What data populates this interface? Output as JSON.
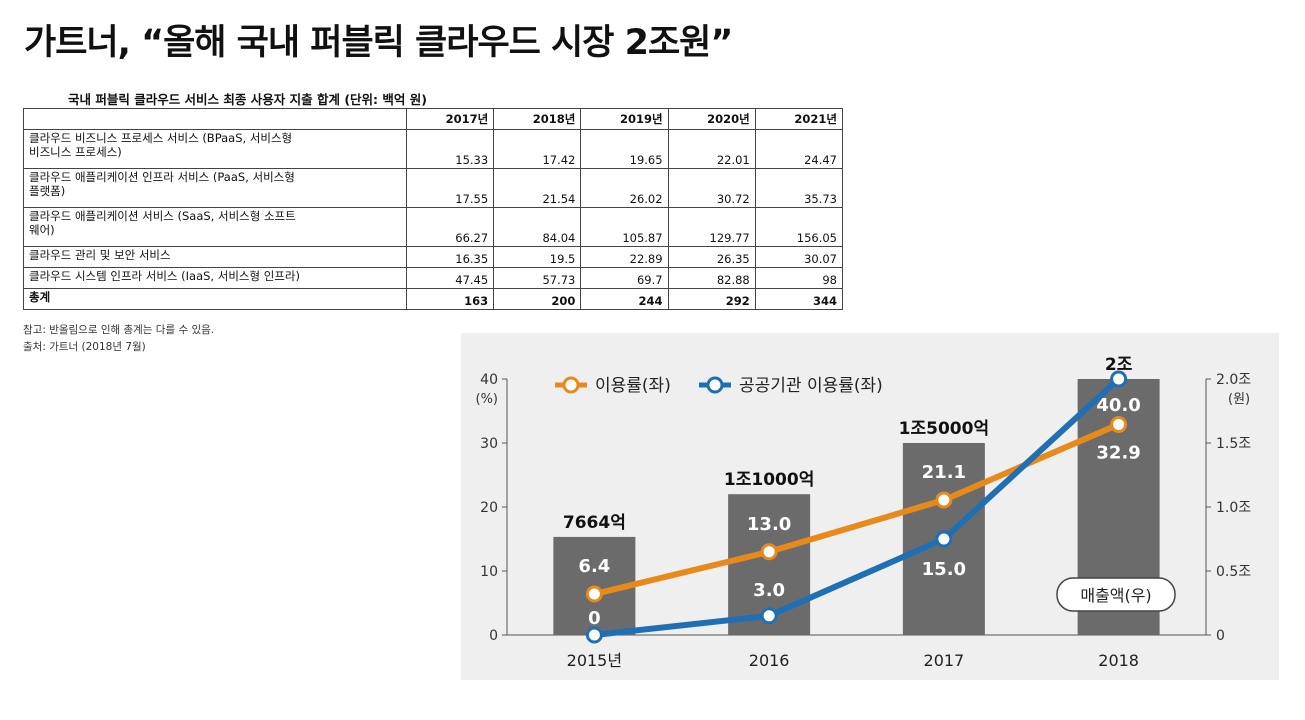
{
  "title": "가트너, “올해 국내 퍼블릭 클라우드 시장 2조원”",
  "table": {
    "caption": "국내 퍼블릭 클라우드 서비스 최종 사용자 지출 합계 (단위: 백억 원)",
    "columns": [
      "2017년",
      "2018년",
      "2019년",
      "2020년",
      "2021년"
    ],
    "rows": [
      {
        "label_lines": [
          "클라우드 비즈니스 프로세스 서비스 (BPaaS, 서비스형",
          "비즈니스 프로세스)"
        ],
        "values": [
          "15.33",
          "17.42",
          "19.65",
          "22.01",
          "24.47"
        ]
      },
      {
        "label_lines": [
          "클라우드 애플리케이션 인프라 서비스 (PaaS, 서비스형",
          "플랫폼)"
        ],
        "values": [
          "17.55",
          "21.54",
          "26.02",
          "30.72",
          "35.73"
        ]
      },
      {
        "label_lines": [
          "클라우드 애플리케이션 서비스 (SaaS, 서비스형 소프트",
          "웨어)"
        ],
        "values": [
          "66.27",
          "84.04",
          "105.87",
          "129.77",
          "156.05"
        ]
      },
      {
        "label_lines": [
          "클라우드 관리 및 보안 서비스"
        ],
        "values": [
          "16.35",
          "19.5",
          "22.89",
          "26.35",
          "30.07"
        ]
      },
      {
        "label_lines": [
          "클라우드 시스템 인프라 서비스 (IaaS, 서비스형 인프라)"
        ],
        "values": [
          "47.45",
          "57.73",
          "69.7",
          "82.88",
          "98"
        ]
      }
    ],
    "total": {
      "label": "총계",
      "values": [
        "163",
        "200",
        "244",
        "292",
        "344"
      ]
    }
  },
  "note": "참고: 반올림으로 인해 총계는 다를 수 있음.",
  "source": "출처: 가트너 (2018년 7월)",
  "chart_data": {
    "type": "bar+line",
    "categories": [
      "2015년",
      "2016",
      "2017",
      "2018"
    ],
    "bars": {
      "name": "매출액(우)",
      "values": [
        0.7664,
        1.1,
        1.5,
        2.0
      ],
      "labels": [
        "7664억",
        "1조1000억",
        "1조5000억",
        "2조"
      ],
      "color": "#6b6b6b"
    },
    "series": [
      {
        "name": "이용률(좌)",
        "values": [
          6.4,
          13.0,
          21.1,
          32.9
        ],
        "labels": [
          "6.4",
          "13.0",
          "21.1",
          "32.9"
        ],
        "color": "#e8891c"
      },
      {
        "name": "공공기관 이용률(좌)",
        "values": [
          0,
          3.0,
          15.0,
          40.0
        ],
        "labels": [
          "0",
          "3.0",
          "15.0",
          "40.0"
        ],
        "color": "#1f6fb5"
      }
    ],
    "y_left": {
      "ylim": [
        0,
        40
      ],
      "ticks": [
        "0",
        "10",
        "20",
        "30",
        "40"
      ],
      "unit": "(%)"
    },
    "y_right": {
      "ylim": [
        0,
        2.0
      ],
      "ticks": [
        "0",
        "0.5조",
        "1.0조",
        "1.5조",
        "2.0조"
      ],
      "unit": "(원)"
    },
    "legend": "top-left",
    "grid": false
  }
}
